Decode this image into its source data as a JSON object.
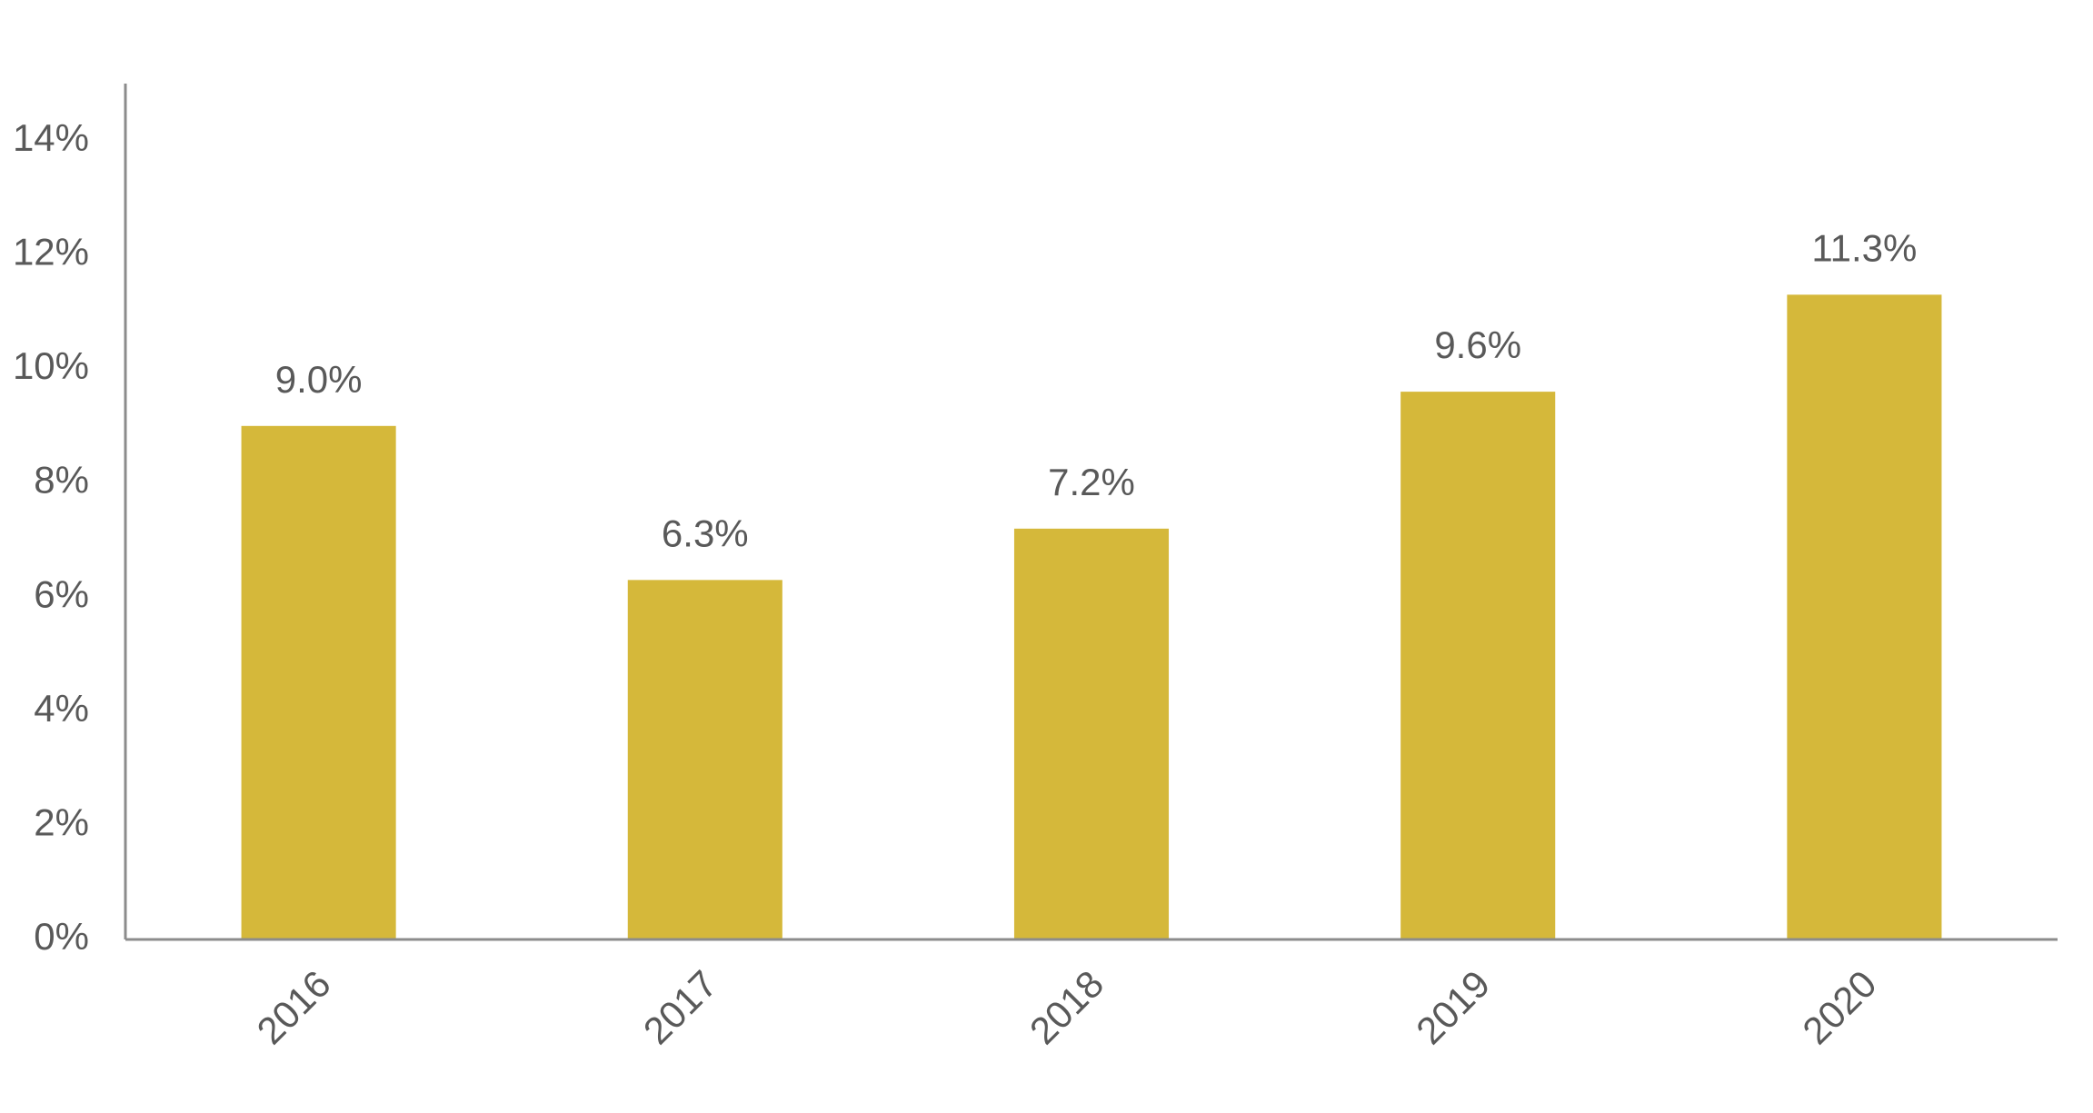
{
  "chart_data": {
    "type": "bar",
    "categories": [
      "2016",
      "2017",
      "2018",
      "2019",
      "2020"
    ],
    "values": [
      9.0,
      6.3,
      7.2,
      9.6,
      11.3
    ],
    "value_labels": [
      "9.0%",
      "6.3%",
      "7.2%",
      "9.6%",
      "11.3%"
    ],
    "color": "#d5b83a",
    "ylim": [
      0,
      15
    ],
    "yticks": [
      {
        "value": 0,
        "label": "0%"
      },
      {
        "value": 2,
        "label": "2%"
      },
      {
        "value": 4,
        "label": "4%"
      },
      {
        "value": 6,
        "label": "6%"
      },
      {
        "value": 8,
        "label": "8%"
      },
      {
        "value": 10,
        "label": "10%"
      },
      {
        "value": 12,
        "label": "12%"
      },
      {
        "value": 14,
        "label": "14%"
      }
    ],
    "grid": false
  }
}
